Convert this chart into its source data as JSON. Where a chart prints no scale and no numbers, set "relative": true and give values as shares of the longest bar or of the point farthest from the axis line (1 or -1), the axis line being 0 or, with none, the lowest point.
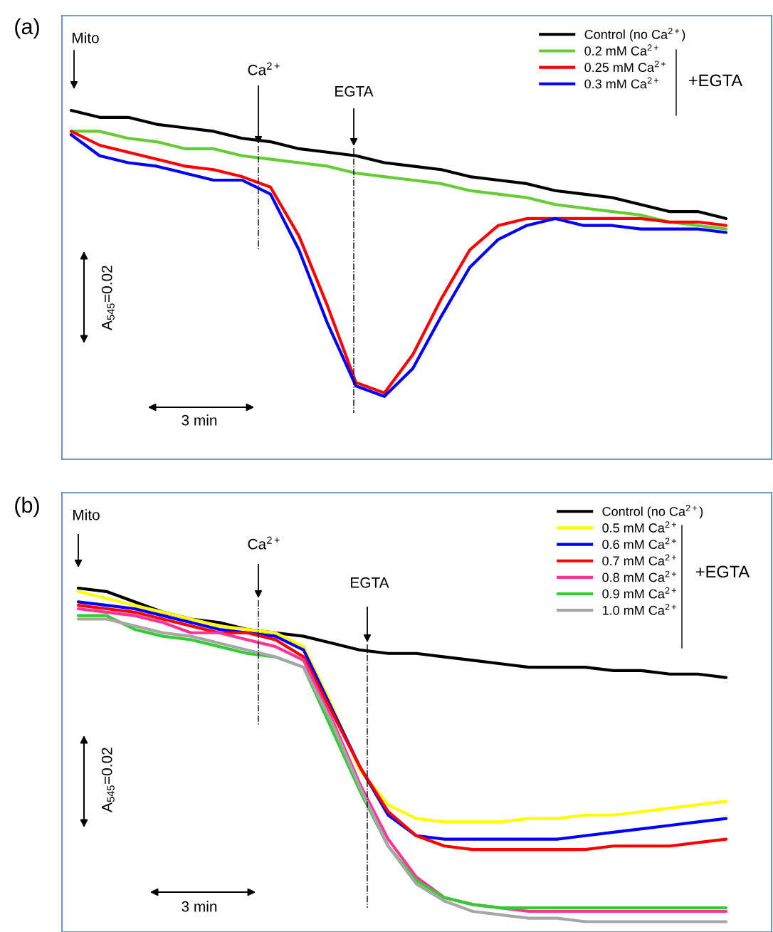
{
  "chart_data": [
    {
      "type": "line",
      "title": "(a)",
      "relative": true,
      "legend": "top right",
      "categories": [
        null,
        null,
        null,
        null,
        null,
        null,
        null,
        null,
        null,
        null,
        null,
        null,
        null,
        null,
        null,
        null,
        null,
        null,
        null,
        null,
        null,
        null,
        null,
        null
      ],
      "series": [
        {
          "name": "Control (no Ca$^{2+}$)",
          "color": "#000000",
          "values": [
            1.0,
            0.98,
            0.98,
            0.96,
            0.95,
            0.94,
            0.92,
            0.91,
            0.89,
            0.88,
            0.87,
            0.85,
            0.84,
            0.83,
            0.81,
            0.8,
            0.79,
            0.77,
            0.76,
            0.75,
            0.73,
            0.71,
            0.71,
            0.69
          ]
        },
        {
          "name": "0.2 mM Ca$^{2+}$",
          "color": "#66cc33",
          "values": [
            0.94,
            0.94,
            0.92,
            0.91,
            0.89,
            0.89,
            0.87,
            0.86,
            0.85,
            0.84,
            0.82,
            0.81,
            0.8,
            0.79,
            0.77,
            0.76,
            0.75,
            0.73,
            0.72,
            0.71,
            0.7,
            0.68,
            0.67,
            0.66
          ]
        },
        {
          "name": "0.25 mM Ca$^{2+}$",
          "color": "#ff0000",
          "values": [
            0.94,
            0.9,
            0.88,
            0.86,
            0.84,
            0.83,
            0.81,
            0.78,
            0.64,
            0.44,
            0.22,
            0.19,
            0.3,
            0.46,
            0.6,
            0.67,
            0.69,
            0.69,
            0.69,
            0.69,
            0.69,
            0.68,
            0.68,
            0.67
          ]
        },
        {
          "name": "0.3 mM Ca$^{2+}$",
          "color": "#0000ff",
          "values": [
            0.93,
            0.87,
            0.85,
            0.84,
            0.82,
            0.8,
            0.8,
            0.76,
            0.6,
            0.39,
            0.21,
            0.18,
            0.26,
            0.41,
            0.55,
            0.63,
            0.67,
            0.69,
            0.67,
            0.67,
            0.66,
            0.66,
            0.66,
            0.65
          ]
        }
      ],
      "annotations": [
        "Mito",
        "Ca$^{2+}$",
        "EGTA",
        "A$_{545}$=0.02",
        "3 min",
        "+EGTA"
      ]
    },
    {
      "type": "line",
      "title": "(b)",
      "relative": true,
      "legend": "top right",
      "categories": [
        null,
        null,
        null,
        null,
        null,
        null,
        null,
        null,
        null,
        null,
        null,
        null,
        null,
        null,
        null,
        null,
        null,
        null,
        null,
        null,
        null,
        null,
        null,
        null
      ],
      "series": [
        {
          "name": "Control (no Ca$^{2+}$)",
          "color": "#000000",
          "values": [
            1.0,
            0.99,
            0.96,
            0.93,
            0.91,
            0.9,
            0.88,
            0.87,
            0.86,
            0.84,
            0.82,
            0.81,
            0.81,
            0.8,
            0.79,
            0.78,
            0.77,
            0.77,
            0.77,
            0.76,
            0.76,
            0.75,
            0.75,
            0.74
          ]
        },
        {
          "name": "0.5 mM Ca$^{2+}$",
          "color": "#ffff00",
          "values": [
            0.99,
            0.97,
            0.95,
            0.93,
            0.91,
            0.89,
            0.88,
            0.87,
            0.83,
            0.66,
            0.47,
            0.37,
            0.33,
            0.32,
            0.32,
            0.32,
            0.33,
            0.33,
            0.34,
            0.34,
            0.35,
            0.36,
            0.37,
            0.38
          ]
        },
        {
          "name": "0.6 mM Ca$^{2+}$",
          "color": "#0000ff",
          "values": [
            0.96,
            0.95,
            0.94,
            0.92,
            0.9,
            0.88,
            0.87,
            0.86,
            0.82,
            0.65,
            0.48,
            0.34,
            0.28,
            0.27,
            0.27,
            0.27,
            0.27,
            0.27,
            0.28,
            0.29,
            0.3,
            0.31,
            0.32,
            0.33
          ]
        },
        {
          "name": "0.7 mM Ca$^{2+}$",
          "color": "#ff0000",
          "values": [
            0.95,
            0.94,
            0.93,
            0.91,
            0.89,
            0.87,
            0.87,
            0.85,
            0.8,
            0.64,
            0.48,
            0.35,
            0.28,
            0.25,
            0.24,
            0.24,
            0.24,
            0.24,
            0.24,
            0.25,
            0.25,
            0.25,
            0.26,
            0.27
          ]
        },
        {
          "name": "0.8 mM Ca$^{2+}$",
          "color": "#ff3399",
          "values": [
            0.94,
            0.93,
            0.92,
            0.9,
            0.87,
            0.87,
            0.85,
            0.83,
            0.79,
            0.62,
            0.43,
            0.27,
            0.16,
            0.1,
            0.08,
            0.07,
            0.06,
            0.06,
            0.06,
            0.06,
            0.06,
            0.06,
            0.06,
            0.06
          ]
        },
        {
          "name": "0.9 mM Ca$^{2+}$",
          "color": "#33cc33",
          "values": [
            0.92,
            0.92,
            0.88,
            0.86,
            0.85,
            0.83,
            0.81,
            0.8,
            0.77,
            0.59,
            0.41,
            0.25,
            0.15,
            0.1,
            0.08,
            0.07,
            0.07,
            0.07,
            0.07,
            0.07,
            0.07,
            0.07,
            0.07,
            0.07
          ]
        },
        {
          "name": "1.0 mM Ca$^{2+}$",
          "color": "#a6a6a6",
          "values": [
            0.91,
            0.91,
            0.89,
            0.87,
            0.86,
            0.84,
            0.82,
            0.8,
            0.77,
            0.61,
            0.42,
            0.25,
            0.14,
            0.09,
            0.06,
            0.05,
            0.04,
            0.04,
            0.03,
            0.03,
            0.03,
            0.03,
            0.03,
            0.03
          ]
        }
      ],
      "annotations": [
        "Mito",
        "Ca$^{2+}$",
        "EGTA",
        "A$_{545}$=0.02",
        "3 min",
        "+EGTA"
      ]
    }
  ]
}
